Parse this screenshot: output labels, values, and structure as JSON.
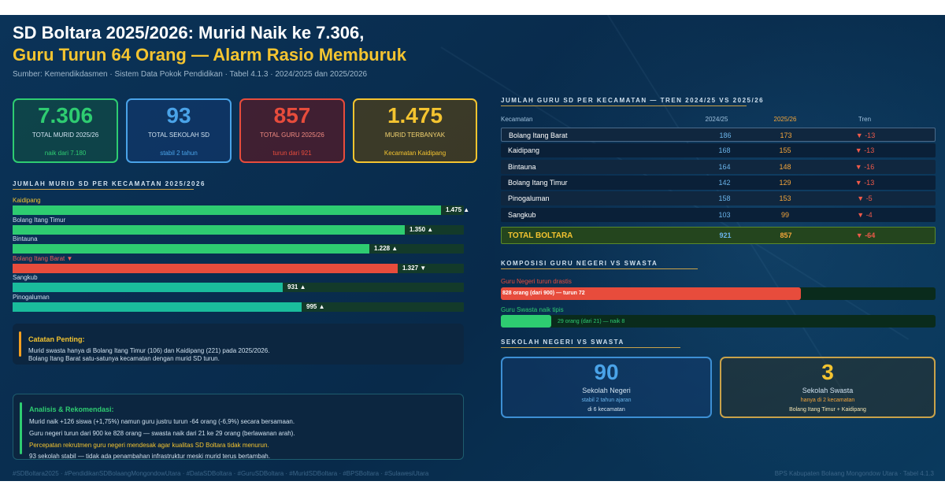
{
  "header": {
    "title_line1": "SD Boltara 2025/2026: Murid Naik ke 7.306,",
    "title_line2": "Guru Turun 64 Orang — Alarm Rasio Memburuk",
    "source": "Sumber: Kemendikdasmen · Sistem Data Pokok Pendidikan · Tabel 4.1.3 · 2024/2025 dan 2025/2026"
  },
  "kpis": [
    {
      "value": "7.306",
      "label": "TOTAL MURID 2025/26",
      "sub": "naik dari 7.180",
      "color": "#2ecc71"
    },
    {
      "value": "93",
      "label": "TOTAL SEKOLAH SD",
      "sub": "stabil 2 tahun",
      "color": "#4aa3e8"
    },
    {
      "value": "857",
      "label": "TOTAL GURU 2025/26",
      "sub": "turun dari 921",
      "color": "#e74c3c"
    },
    {
      "value": "1.475",
      "label": "MURID TERBANYAK",
      "sub": "Kecamatan Kaidipang",
      "color": "#f4c430"
    }
  ],
  "murid": {
    "heading": "JUMLAH MURID SD PER KECAMATAN 2025/2026",
    "rows": [
      {
        "label": "Kaidipang",
        "display": "1.475 ▲",
        "value": 1475,
        "color": "#2ecc71",
        "label_color": "#f4c430"
      },
      {
        "label": "Bolang Itang Timur",
        "display": "1.350 ▲",
        "value": 1350,
        "color": "#2ecc71",
        "label_color": "#cfe0ee"
      },
      {
        "label": "Bintauna",
        "display": "1.228 ▲",
        "value": 1228,
        "color": "#2ecc71",
        "label_color": "#cfe0ee"
      },
      {
        "label": "Bolang Itang Barat ▼",
        "display": "1.327 ▼",
        "value": 1327,
        "color": "#e74c3c",
        "label_color": "#f0605a"
      },
      {
        "label": "Sangkub",
        "display": "931 ▲",
        "value": 931,
        "color": "#1abc9c",
        "label_color": "#cfe0ee"
      },
      {
        "label": "Pinogaluman",
        "display": "995 ▲",
        "value": 995,
        "color": "#1abc9c",
        "label_color": "#cfe0ee"
      }
    ],
    "max": 1500
  },
  "catatan": {
    "title": "Catatan Penting:",
    "line1": "Murid swasta hanya di Bolang Itang Timur (106) dan Kaidipang (221) pada 2025/2026.",
    "line2": "Bolang Itang Barat satu-satunya kecamatan dengan murid SD turun."
  },
  "analisis": {
    "title": "Analisis & Rekomendasi:",
    "line1": "Murid naik +126 siswa (+1,75%) namun guru justru turun -64 orang (-6,9%) secara bersamaan.",
    "line2": "Guru negeri turun dari 900 ke 828 orang — swasta naik dari 21 ke 29 orang (berlawanan arah).",
    "line3": "Percepatan rekrutmen guru negeri mendesak agar kualitas SD Boltara tidak menurun.",
    "line4": "93 sekolah stabil — tidak ada penambahan infrastruktur meski murid terus bertambah."
  },
  "guru_table": {
    "heading": "JUMLAH GURU SD PER KECAMATAN — TREN 2024/25 VS 2025/26",
    "headers": [
      "Kecamatan",
      "2024/25",
      "2025/26",
      "Tren"
    ],
    "rows": [
      {
        "name": "Bolang Itang Barat",
        "a": "186",
        "b": "173",
        "t": "▼ -13"
      },
      {
        "name": "Kaidipang",
        "a": "168",
        "b": "155",
        "t": "▼ -13"
      },
      {
        "name": "Bintauna",
        "a": "164",
        "b": "148",
        "t": "▼ -16"
      },
      {
        "name": "Bolang Itang Timur",
        "a": "142",
        "b": "129",
        "t": "▼ -13"
      },
      {
        "name": "Pinogaluman",
        "a": "158",
        "b": "153",
        "t": "▼ -5"
      },
      {
        "name": "Sangkub",
        "a": "103",
        "b": "99",
        "t": "▼ -4"
      }
    ],
    "total": {
      "name": "TOTAL BOLTARA",
      "a": "921",
      "b": "857",
      "t": "▼ -64"
    }
  },
  "komposisi": {
    "heading": "KOMPOSISI GURU NEGERI VS SWASTA",
    "negeri_label": "Guru Negeri turun drastis",
    "negeri_text": "828 orang (dari 900) — turun 72",
    "negeri_value": 828,
    "swasta_label": "Guru Swasta naik tipis",
    "swasta_text": "29 orang (dari 21) — naik 8",
    "swasta_value": 29,
    "negeri_color": "#e74c3c",
    "swasta_color": "#2ecc71"
  },
  "sekolah": {
    "heading": "SEKOLAH NEGERI VS SWASTA",
    "negeri": {
      "value": "90",
      "label": "Sekolah Negeri",
      "sub1": "stabil 2 tahun ajaran",
      "sub2": "di 6 kecamatan"
    },
    "swasta": {
      "value": "3",
      "label": "Sekolah Swasta",
      "sub1": "hanya di 2 kecamatan",
      "sub2": "Bolang Itang Timur + Kaidipang"
    }
  },
  "footer": {
    "hashtags": "#SDBoltara2025 · #PendidikanSDBolaangMongondowUtara · #DataSDBoltara · #GuruSDBoltara · #MuridSDBoltara · #BPSBoltara · #SulawesiUtara",
    "credit": "BPS Kabupaten Bolaang Mongondow Utara · Tabel 4.1.3"
  }
}
